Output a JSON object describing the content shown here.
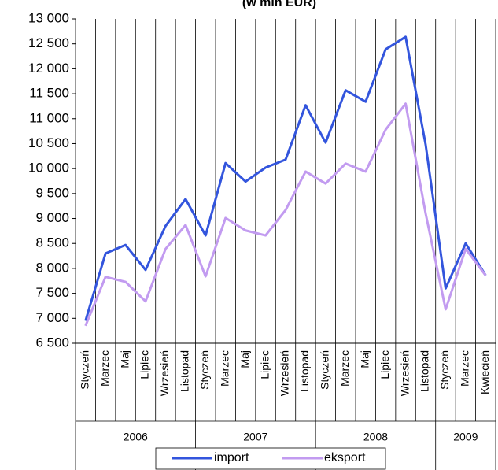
{
  "chart_data": {
    "type": "line",
    "title": "(w mln EUR)",
    "categories": [
      "Styczeń",
      "Marzec",
      "Maj",
      "Lipiec",
      "Wrzesień",
      "Listopad",
      "Styczeń",
      "Marzec",
      "Maj",
      "Lipiec",
      "Wrzesień",
      "Listopad",
      "Styczeń",
      "Marzec",
      "Maj",
      "Lipiec",
      "Wrzesień",
      "Listopad",
      "Styczeń",
      "Marzec",
      "Kwiecień"
    ],
    "category_years": [
      "2006",
      "2006",
      "2006",
      "2006",
      "2006",
      "2006",
      "2007",
      "2007",
      "2007",
      "2007",
      "2007",
      "2007",
      "2008",
      "2008",
      "2008",
      "2008",
      "2008",
      "2008",
      "2009",
      "2009",
      "2009"
    ],
    "series": [
      {
        "name": "import",
        "color": "#3355dd",
        "values": [
          6950,
          8300,
          8470,
          7970,
          8850,
          9390,
          8660,
          10110,
          9740,
          10020,
          10180,
          11270,
          10520,
          11570,
          11340,
          12390,
          12640,
          10480,
          7600,
          8500,
          7860
        ]
      },
      {
        "name": "eksport",
        "color": "#c29bf0",
        "values": [
          6850,
          7830,
          7730,
          7340,
          8390,
          8870,
          7840,
          9010,
          8760,
          8660,
          9170,
          9940,
          9700,
          10100,
          9940,
          10780,
          11300,
          9100,
          7180,
          8390,
          7860
        ]
      }
    ],
    "ylim": [
      6500,
      13000
    ],
    "yticks": [
      {
        "value": 6500,
        "label": "6 500"
      },
      {
        "value": 7000,
        "label": "7 000"
      },
      {
        "value": 7500,
        "label": "7 500"
      },
      {
        "value": 8000,
        "label": "8 000"
      },
      {
        "value": 8500,
        "label": "8 500"
      },
      {
        "value": 9000,
        "label": "9 000"
      },
      {
        "value": 9500,
        "label": "9 500"
      },
      {
        "value": 10000,
        "label": "10 000"
      },
      {
        "value": 10500,
        "label": "10 500"
      },
      {
        "value": 11000,
        "label": "11 000"
      },
      {
        "value": 11500,
        "label": "11 500"
      },
      {
        "value": 12000,
        "label": "12 000"
      },
      {
        "value": 12500,
        "label": "12 500"
      },
      {
        "value": 13000,
        "label": "13 000"
      }
    ],
    "legend": "bottom"
  }
}
